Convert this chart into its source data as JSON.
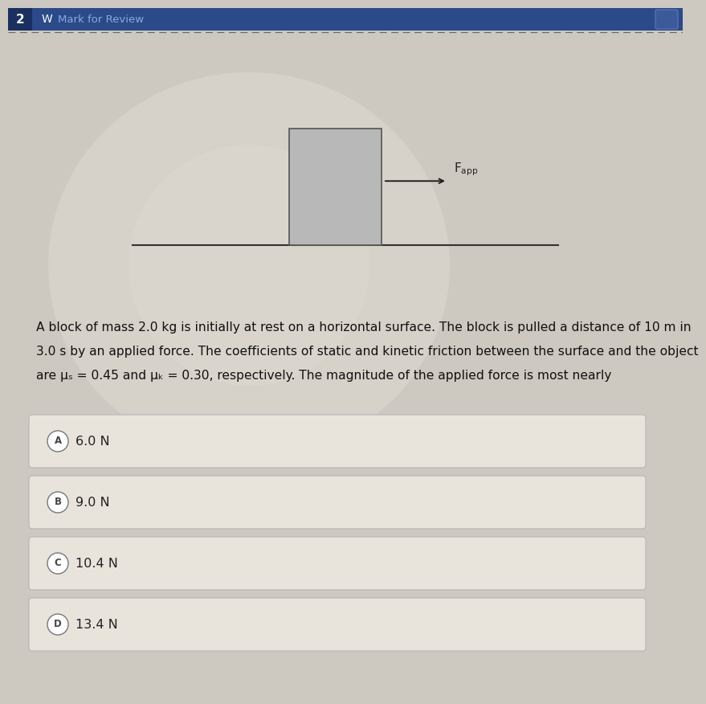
{
  "header_num": "2",
  "header_icon": "✓",
  "header_text": "Mark for Review",
  "page_bg": "#cdc9c0",
  "content_bg": "#cdc9c0",
  "block_color": "#b8b8b8",
  "block_edge_color": "#555555",
  "surface_color": "#333333",
  "arrow_color": "#222222",
  "arrow_label": "$F_{app}$",
  "question_line1": "A block of mass 2.0 kg is initially at rest on a horizontal surface. The block is pulled a distance of 10 m in",
  "question_line2": "3.0 s by an applied force. The coefficients of static and kinetic friction between the surface and the object",
  "question_line3": "are μₛ = 0.45 and μₖ = 0.30, respectively. The magnitude of the applied force is most nearly",
  "choices": [
    {
      "label": "A",
      "text": "6.0 N"
    },
    {
      "label": "B",
      "text": "9.0 N"
    },
    {
      "label": "C",
      "text": "10.4 N"
    },
    {
      "label": "D",
      "text": "13.4 N"
    }
  ],
  "choice_bg": "#e8e4dc",
  "choice_border": "#bbbbbb",
  "choice_text_color": "#222222",
  "question_text_color": "#111111",
  "header_bg": "#2a4a8a",
  "header_num_bg": "#1a3060",
  "header_text_color": "#88aadd",
  "dashed_color": "#666666"
}
